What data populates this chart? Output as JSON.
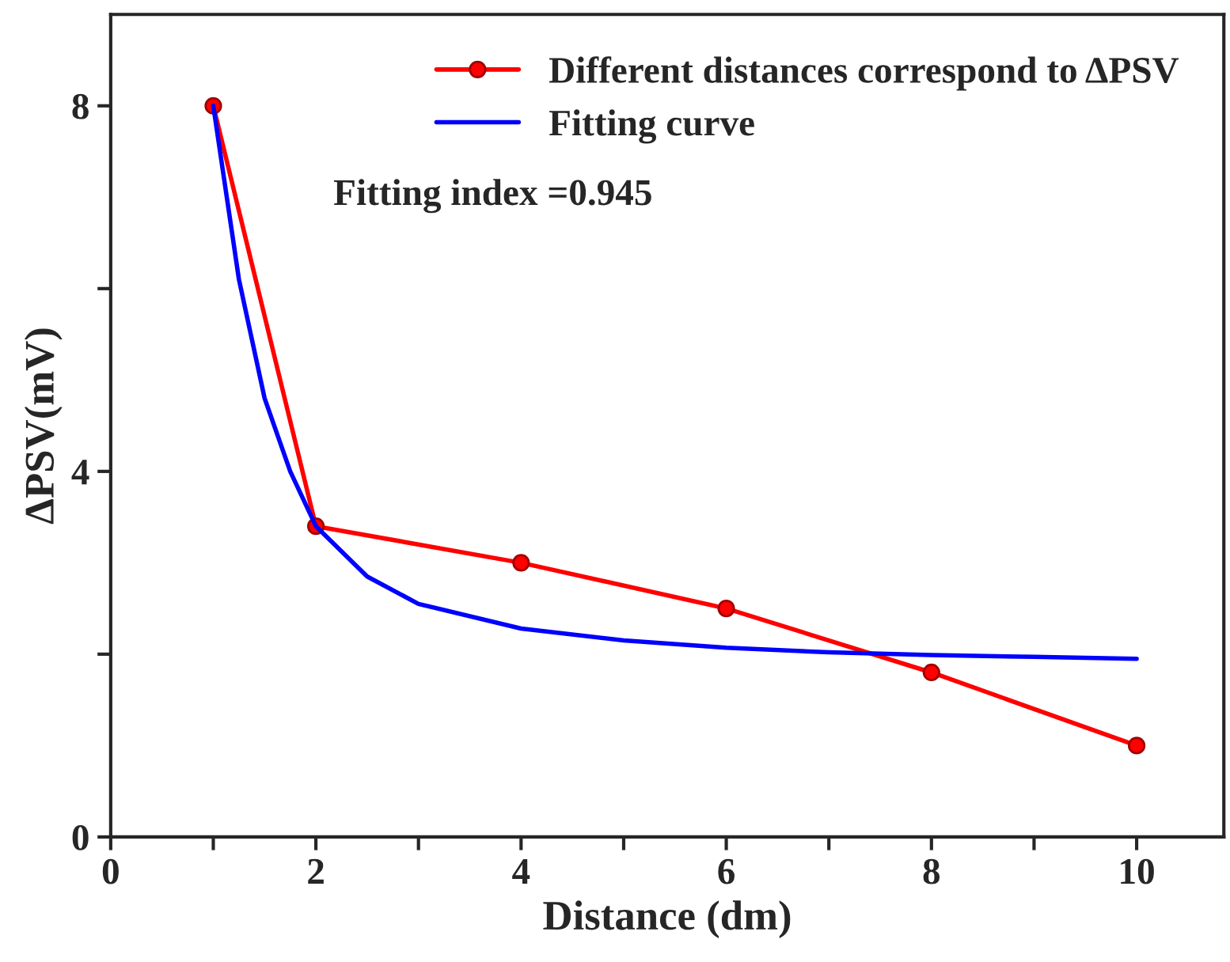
{
  "chart_data": {
    "type": "line",
    "xlabel": "Distance (dm)",
    "ylabel": "ΔPSV(mV)",
    "xlim": [
      0,
      10.85
    ],
    "ylim": [
      0,
      9
    ],
    "xticks": [
      0,
      {
        "value": 1,
        "label": null
      },
      2,
      {
        "value": 3,
        "label": null
      },
      4,
      {
        "value": 5,
        "label": null
      },
      6,
      {
        "value": 7,
        "label": null
      },
      8,
      {
        "value": 9,
        "label": null
      },
      10
    ],
    "yticks": [
      0,
      {
        "value": 2,
        "label": null
      },
      4,
      {
        "value": 6,
        "label": null
      },
      8
    ],
    "grid": false,
    "legend": "top right",
    "line_style": "solid",
    "series": [
      {
        "name": "Different distances correspond to ΔPSV",
        "color": "#ff0000",
        "marker": "circle",
        "x": [
          1,
          2,
          4,
          6,
          8,
          10
        ],
        "values": [
          8.0,
          3.4,
          3.0,
          2.5,
          1.8,
          1.0
        ]
      },
      {
        "name": "Fitting curve",
        "color": "#0000ff",
        "marker": "none",
        "x": [
          1,
          1.25,
          1.5,
          1.75,
          2,
          2.5,
          3,
          4,
          5,
          6,
          7,
          8,
          9,
          10
        ],
        "values": [
          8.0,
          6.1,
          4.8,
          4.0,
          3.4,
          2.85,
          2.55,
          2.28,
          2.15,
          2.07,
          2.02,
          1.99,
          1.97,
          1.95
        ]
      }
    ],
    "annotations": [
      "Fitting index =0.945"
    ]
  }
}
